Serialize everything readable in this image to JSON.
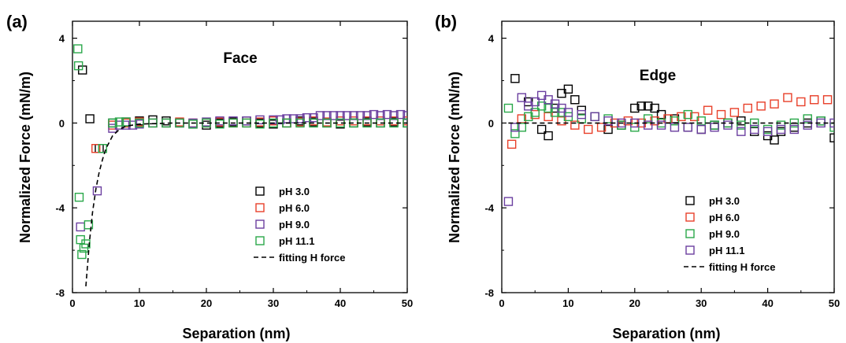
{
  "chart_data": [
    {
      "type": "scatter",
      "panel_label": "(a)",
      "title": "Face",
      "xlabel": "Separation (nm)",
      "ylabel": "Normalized Force (mN/m)",
      "xlim": [
        0,
        50
      ],
      "ylim": [
        -8,
        4.8
      ],
      "x_ticks": [
        0,
        10,
        20,
        30,
        40,
        50
      ],
      "y_ticks": [
        -8,
        -4,
        0,
        4
      ],
      "legend_position": "lower-right",
      "series": [
        {
          "name": "pH 3.0",
          "color": "#000000",
          "x": [
            1.5,
            2.6,
            4.0,
            6.0,
            8,
            10,
            12,
            14,
            16,
            18,
            20,
            22,
            24,
            26,
            28,
            30,
            32,
            34,
            36,
            38,
            40,
            42,
            44,
            46,
            48,
            50
          ],
          "y": [
            2.5,
            0.2,
            -1.2,
            0.0,
            0.05,
            0.1,
            0.15,
            0.1,
            0.0,
            -0.05,
            -0.1,
            0.0,
            0.05,
            0.1,
            0.0,
            -0.05,
            0.0,
            0.1,
            0.05,
            0.0,
            -0.05,
            0.0,
            0.05,
            0.0,
            0.05,
            0.0
          ]
        },
        {
          "name": "pH 6.0",
          "color": "#e8402a",
          "x": [
            3.5,
            6.0,
            8,
            10,
            12,
            14,
            16,
            18,
            20,
            22,
            24,
            26,
            28,
            30,
            32,
            34,
            36,
            38,
            40,
            42,
            44,
            46,
            48,
            50
          ],
          "y": [
            -1.2,
            -0.1,
            0.0,
            0.05,
            0.0,
            0.0,
            0.05,
            0.0,
            0.0,
            0.05,
            0.0,
            0.0,
            0.05,
            0.1,
            0.0,
            0.05,
            0.1,
            0.05,
            0.1,
            0.1,
            0.1,
            0.1,
            0.1,
            0.1
          ]
        },
        {
          "name": "pH 9.0",
          "color": "#6b3fa0",
          "x": [
            1.2,
            3.7,
            6.0,
            7,
            8,
            9,
            10,
            12,
            14,
            16,
            18,
            20,
            22,
            24,
            26,
            28,
            30,
            31,
            32,
            33,
            34,
            35,
            36,
            37,
            38,
            39,
            40,
            41,
            42,
            43,
            44,
            45,
            46,
            47,
            48,
            49,
            50
          ],
          "y": [
            -4.9,
            -3.2,
            -0.25,
            -0.1,
            -0.1,
            -0.1,
            -0.05,
            0.0,
            0.0,
            0.0,
            0.0,
            0.05,
            0.1,
            0.1,
            0.1,
            0.15,
            0.15,
            0.15,
            0.2,
            0.2,
            0.2,
            0.25,
            0.25,
            0.35,
            0.35,
            0.35,
            0.35,
            0.35,
            0.35,
            0.35,
            0.35,
            0.4,
            0.35,
            0.4,
            0.35,
            0.4,
            0.35
          ]
        },
        {
          "name": "pH 11.1",
          "color": "#2aa84a",
          "x": [
            0.8,
            0.9,
            1.0,
            1.2,
            1.4,
            1.7,
            2.0,
            2.4,
            4.5,
            6.0,
            7,
            8,
            10,
            12,
            14,
            16,
            18,
            20,
            22,
            24,
            26,
            28,
            30,
            32,
            34,
            36,
            38,
            40,
            42,
            44,
            46,
            48,
            50
          ],
          "y": [
            3.5,
            2.7,
            -3.5,
            -5.5,
            -6.2,
            -5.9,
            -5.7,
            -4.8,
            -1.2,
            0.0,
            0.05,
            0.05,
            0.0,
            0.0,
            0.0,
            0.0,
            -0.05,
            0.0,
            -0.05,
            0.0,
            0.0,
            -0.05,
            0.0,
            0.0,
            0.0,
            0.0,
            0.0,
            0.0,
            0.0,
            0.0,
            0.0,
            0.0,
            0.0
          ]
        },
        {
          "name": "fitting H force",
          "color": "#000000",
          "style": "dashed",
          "x": [
            2.0,
            2.5,
            3.0,
            3.5,
            4.0,
            4.5,
            5.0,
            5.5,
            6.0,
            7.0,
            8.0,
            10,
            15,
            20,
            30,
            40,
            50
          ],
          "y": [
            -7.7,
            -5.7,
            -4.2,
            -3.1,
            -2.3,
            -1.7,
            -1.2,
            -0.9,
            -0.6,
            -0.3,
            -0.15,
            -0.05,
            0.0,
            0.0,
            0.0,
            0.0,
            0.0
          ]
        }
      ]
    },
    {
      "type": "scatter",
      "panel_label": "(b)",
      "title": "Edge",
      "xlabel": "Separation (nm)",
      "ylabel": "Normalized Force (mN/m)",
      "xlim": [
        0,
        50
      ],
      "ylim": [
        -8,
        4.8
      ],
      "x_ticks": [
        0,
        10,
        20,
        30,
        40,
        50
      ],
      "y_ticks": [
        -8,
        -4,
        0,
        4
      ],
      "legend_position": "lower-right",
      "series": [
        {
          "name": "pH 3.0",
          "color": "#000000",
          "x": [
            2,
            4,
            6,
            7,
            8,
            9,
            10,
            11,
            12,
            14,
            16,
            18,
            20,
            21,
            22,
            23,
            24,
            26,
            28,
            30,
            32,
            34,
            36,
            38,
            40,
            41,
            42,
            44,
            46,
            48,
            50
          ],
          "y": [
            2.1,
            1.0,
            -0.3,
            -0.6,
            0.7,
            1.4,
            1.6,
            1.1,
            0.6,
            0.3,
            -0.3,
            -0.1,
            0.7,
            0.8,
            0.8,
            0.7,
            0.4,
            0.2,
            -0.2,
            -0.3,
            -0.1,
            0.0,
            0.1,
            -0.4,
            -0.6,
            -0.8,
            -0.4,
            -0.2,
            0.0,
            0.1,
            -0.7
          ]
        },
        {
          "name": "pH 6.0",
          "color": "#e8402a",
          "x": [
            1.5,
            3,
            5,
            7,
            9,
            11,
            13,
            15,
            17,
            19,
            21,
            23,
            25,
            27,
            29,
            31,
            33,
            35,
            37,
            39,
            41,
            43,
            45,
            47,
            49
          ],
          "y": [
            -1.0,
            0.2,
            0.4,
            0.3,
            0.1,
            -0.1,
            -0.3,
            -0.2,
            0.0,
            0.1,
            0.0,
            0.1,
            0.2,
            0.3,
            0.3,
            0.6,
            0.4,
            0.5,
            0.7,
            0.8,
            0.9,
            1.2,
            1.0,
            1.1,
            1.1
          ]
        },
        {
          "name": "pH 9.0",
          "color": "#2aa84a",
          "x": [
            1,
            2,
            3,
            4,
            5,
            6,
            7,
            8,
            9,
            10,
            12,
            14,
            16,
            18,
            20,
            22,
            24,
            26,
            28,
            30,
            32,
            34,
            36,
            38,
            40,
            42,
            44,
            46,
            48,
            50
          ],
          "y": [
            0.7,
            -0.5,
            -0.2,
            0.3,
            0.5,
            0.8,
            0.7,
            0.5,
            0.5,
            0.3,
            0.2,
            0.3,
            0.2,
            -0.1,
            -0.2,
            0.2,
            0.0,
            0.1,
            0.4,
            0.1,
            -0.1,
            0.0,
            -0.1,
            0.0,
            -0.3,
            -0.1,
            0.0,
            0.2,
            0.1,
            -0.2
          ]
        },
        {
          "name": "pH 11.1",
          "color": "#6b3fa0",
          "x": [
            1,
            2,
            3,
            4,
            5,
            6,
            7,
            8,
            9,
            10,
            12,
            14,
            16,
            18,
            20,
            22,
            24,
            26,
            28,
            30,
            32,
            34,
            36,
            38,
            40,
            42,
            44,
            46,
            48,
            50
          ],
          "y": [
            -3.7,
            -0.2,
            1.2,
            0.8,
            1.0,
            1.3,
            1.1,
            0.9,
            0.7,
            0.5,
            0.4,
            0.3,
            0.1,
            0.0,
            0.0,
            -0.1,
            -0.1,
            -0.2,
            -0.2,
            -0.3,
            -0.2,
            -0.1,
            -0.4,
            -0.3,
            -0.4,
            -0.3,
            -0.3,
            -0.1,
            0.0,
            0.0
          ]
        },
        {
          "name": "fitting H force",
          "color": "#000000",
          "style": "dashed",
          "x": [
            1,
            5,
            10,
            15,
            20,
            30,
            40,
            50
          ],
          "y": [
            0.0,
            0.0,
            0.0,
            0.0,
            0.0,
            0.0,
            0.0,
            0.0
          ]
        }
      ]
    }
  ]
}
